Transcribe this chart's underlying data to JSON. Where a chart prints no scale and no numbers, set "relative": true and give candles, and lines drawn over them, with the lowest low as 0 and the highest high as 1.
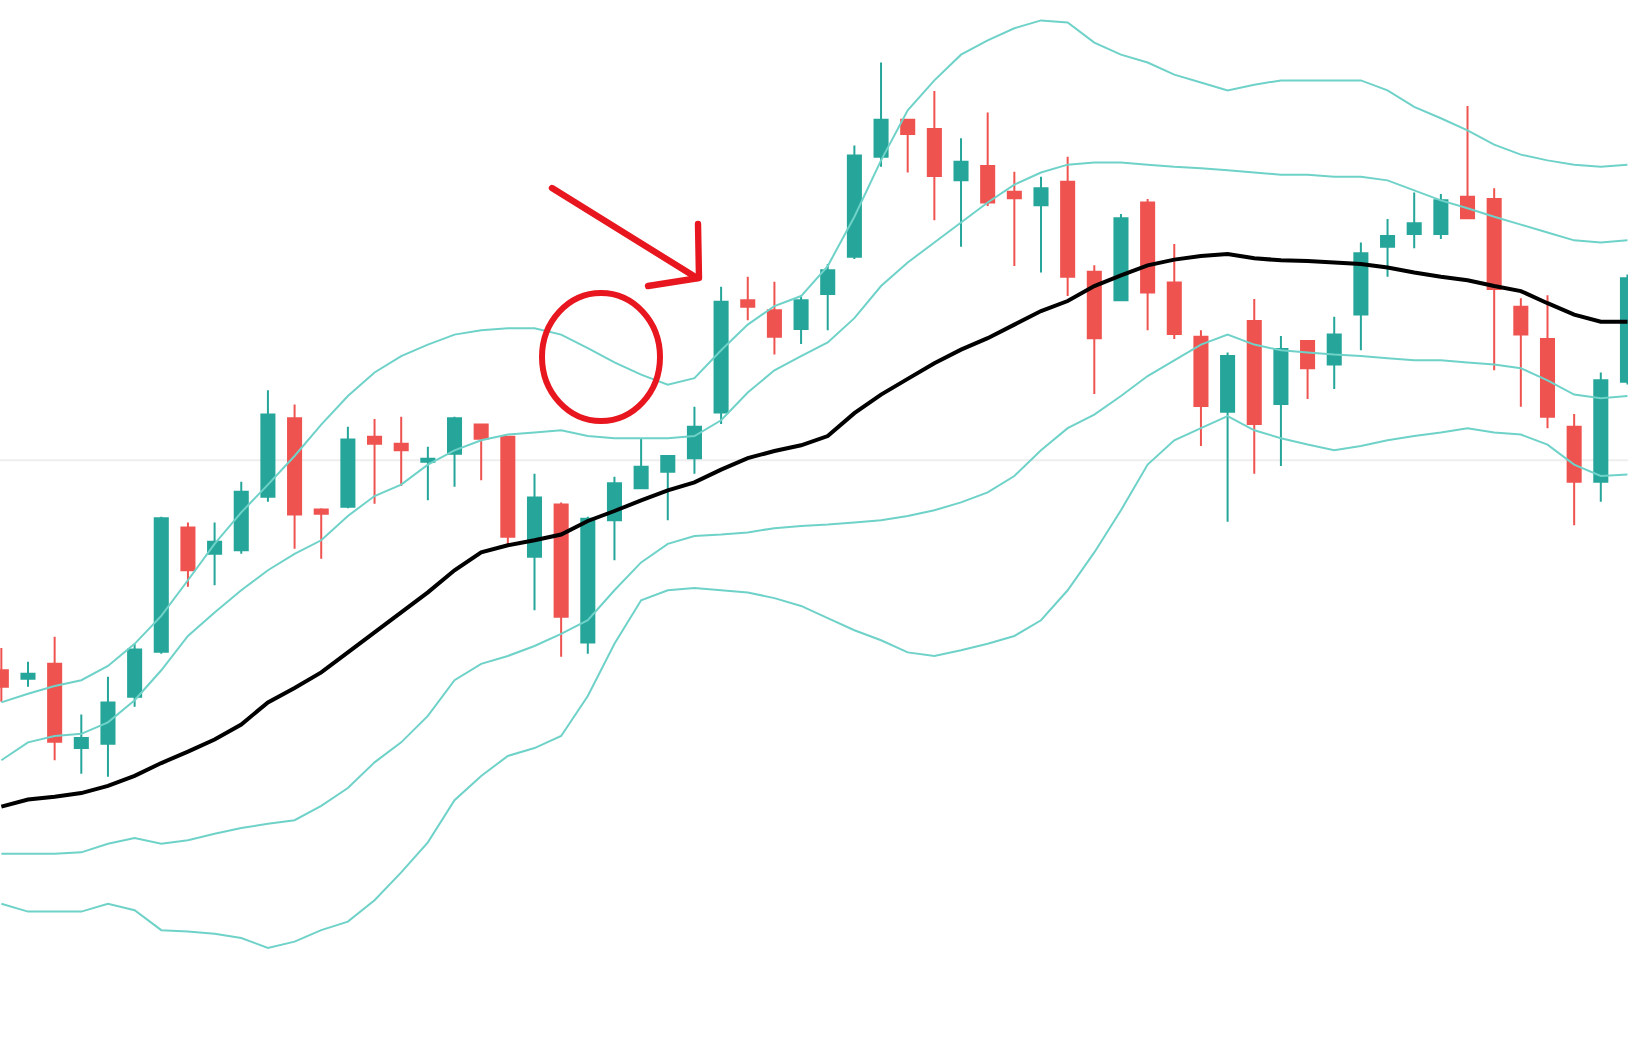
{
  "chart_data": {
    "type": "candlestick",
    "relative": true,
    "categories": [
      null,
      null,
      null,
      null,
      null,
      null,
      null,
      null,
      null,
      null,
      null,
      null,
      null,
      null,
      null,
      null,
      null,
      null,
      null,
      null,
      null,
      null,
      null,
      null,
      null,
      null,
      null,
      null,
      null,
      null,
      null,
      null,
      null,
      null,
      null,
      null,
      null,
      null,
      null,
      null,
      null,
      null,
      null,
      null,
      null,
      null,
      null,
      null,
      null,
      null,
      null,
      null,
      null,
      null,
      null,
      null,
      null,
      null,
      null,
      null,
      null,
      null
    ],
    "ohlc": [
      [
        0.149,
        0.18,
        0.105,
        0.126
      ],
      [
        0.137,
        0.161,
        0.126,
        0.144
      ],
      [
        0.158,
        0.196,
        0.023,
        0.049
      ],
      [
        0.04,
        0.087,
        0.004,
        0.054
      ],
      [
        0.046,
        0.14,
        0,
        0.104
      ],
      [
        0.112,
        0.186,
        0.098,
        0.178
      ],
      [
        0.175,
        0.364,
        0.172,
        0.362
      ],
      [
        0.349,
        0.356,
        0.266,
        0.289
      ],
      [
        0.312,
        0.356,
        0.268,
        0.329
      ],
      [
        0.317,
        0.413,
        0.312,
        0.399
      ],
      [
        0.392,
        0.541,
        0.385,
        0.507
      ],
      [
        0.502,
        0.521,
        0.319,
        0.367
      ],
      [
        0.374,
        0.376,
        0.305,
        0.368
      ],
      [
        0.378,
        0.49,
        0.376,
        0.472
      ],
      [
        0.476,
        0.501,
        0.382,
        0.466
      ],
      [
        0.466,
        0.504,
        0.407,
        0.457
      ],
      [
        0.441,
        0.462,
        0.387,
        0.445
      ],
      [
        0.452,
        0.504,
        0.406,
        0.502
      ],
      [
        0.493,
        0.493,
        0.415,
        0.473
      ],
      [
        0.476,
        0.477,
        0.324,
        0.336
      ],
      [
        0.308,
        0.424,
        0.233,
        0.391
      ],
      [
        0.381,
        0.384,
        0.168,
        0.224
      ],
      [
        0.188,
        0.364,
        0.172,
        0.361
      ],
      [
        0.359,
        0.42,
        0.303,
        0.411
      ],
      [
        0.404,
        0.473,
        0.404,
        0.434
      ],
      [
        0.427,
        0.449,
        0.359,
        0.449
      ],
      [
        0.446,
        0.518,
        0.424,
        0.49
      ],
      [
        0.51,
        0.686,
        0.494,
        0.665
      ],
      [
        0.667,
        0.7,
        0.639,
        0.658
      ],
      [
        0.653,
        0.693,
        0.591,
        0.616
      ],
      [
        0.627,
        0.674,
        0.606,
        0.667
      ],
      [
        0.676,
        0.718,
        0.625,
        0.709
      ],
      [
        0.728,
        0.884,
        0.725,
        0.87
      ],
      [
        0.868,
        1,
        0.854,
        0.92
      ],
      [
        0.92,
        0.92,
        0.846,
        0.9
      ],
      [
        0.907,
        0.96,
        0.779,
        0.841
      ],
      [
        0.835,
        0.894,
        0.742,
        0.861
      ],
      [
        0.855,
        0.93,
        0.799,
        0.804
      ],
      [
        0.819,
        0.847,
        0.715,
        0.81
      ],
      [
        0.8,
        0.84,
        0.706,
        0.824
      ],
      [
        0.833,
        0.868,
        0.673,
        0.7
      ],
      [
        0.707,
        0.716,
        0.536,
        0.614
      ],
      [
        0.667,
        0.788,
        0.667,
        0.782
      ],
      [
        0.804,
        0.809,
        0.625,
        0.678
      ],
      [
        0.692,
        0.746,
        0.613,
        0.62
      ],
      [
        0.616,
        0.625,
        0.463,
        0.519
      ],
      [
        0.511,
        0.594,
        0.357,
        0.589
      ],
      [
        0.638,
        0.669,
        0.424,
        0.494
      ],
      [
        0.522,
        0.617,
        0.435,
        0.599
      ],
      [
        0.61,
        0.61,
        0.529,
        0.572
      ],
      [
        0.577,
        0.644,
        0.543,
        0.619
      ],
      [
        0.647,
        0.748,
        0.597,
        0.733
      ],
      [
        0.742,
        0.781,
        0.7,
        0.757
      ],
      [
        0.76,
        0.818,
        0.74,
        0.775
      ],
      [
        0.76,
        0.816,
        0.753,
        0.807
      ],
      [
        0.812,
        0.939,
        0.782,
        0.782
      ],
      [
        0.809,
        0.824,
        0.569,
        0.683
      ],
      [
        0.658,
        0.67,
        0.518,
        0.619
      ],
      [
        0.613,
        0.674,
        0.488,
        0.504
      ],
      [
        0.49,
        0.508,
        0.352,
        0.413
      ],
      [
        0.413,
        0.566,
        0.385,
        0.555
      ],
      [
        0.553,
        0.703,
        0.549,
        0.698
      ]
    ],
    "colors": [
      "#ef5350",
      "#26a69a",
      "#ef5350",
      "#26a69a",
      "#26a69a",
      "#26a69a",
      "#26a69a",
      "#ef5350",
      "#26a69a",
      "#26a69a",
      "#26a69a",
      "#ef5350",
      "#ef5350",
      "#26a69a",
      "#ef5350",
      "#ef5350",
      "#26a69a",
      "#26a69a",
      "#ef5350",
      "#ef5350",
      "#26a69a",
      "#ef5350",
      "#26a69a",
      "#26a69a",
      "#26a69a",
      "#26a69a",
      "#26a69a",
      "#26a69a",
      "#ef5350",
      "#ef5350",
      "#26a69a",
      "#26a69a",
      "#26a69a",
      "#26a69a",
      "#ef5350",
      "#ef5350",
      "#26a69a",
      "#ef5350",
      "#ef5350",
      "#26a69a",
      "#ef5350",
      "#ef5350",
      "#26a69a",
      "#ef5350",
      "#ef5350",
      "#ef5350",
      "#26a69a",
      "#ef5350",
      "#26a69a",
      "#ef5350",
      "#26a69a",
      "#26a69a",
      "#26a69a",
      "#26a69a",
      "#26a69a",
      "#ef5350",
      "#ef5350",
      "#ef5350",
      "#ef5350",
      "#ef5350",
      "#26a69a",
      "#26a69a"
    ],
    "series": [
      {
        "type": "line",
        "color": "#6fd2c9",
        "values": [
          0.104,
          0.116,
          0.127,
          0.135,
          0.155,
          0.186,
          0.225,
          0.275,
          0.326,
          0.37,
          0.409,
          0.449,
          0.493,
          0.533,
          0.566,
          0.589,
          0.605,
          0.619,
          0.625,
          0.628,
          0.628,
          0.619,
          0.6,
          0.58,
          0.563,
          0.549,
          0.558,
          0.597,
          0.633,
          0.659,
          0.673,
          0.715,
          0.784,
          0.863,
          0.933,
          0.975,
          1.011,
          1.031,
          1.048,
          1.059,
          1.056,
          1.028,
          1.011,
          1.0,
          0.983,
          0.972,
          0.961,
          0.969,
          0.975,
          0.975,
          0.975,
          0.975,
          0.961,
          0.938,
          0.922,
          0.905,
          0.885,
          0.871,
          0.863,
          0.857,
          0.854,
          0.857
        ]
      },
      {
        "type": "line",
        "color": "#6fd2c9",
        "values": [
          0.023,
          0.048,
          0.057,
          0.06,
          0.076,
          0.107,
          0.149,
          0.197,
          0.23,
          0.261,
          0.289,
          0.312,
          0.331,
          0.365,
          0.393,
          0.409,
          0.437,
          0.457,
          0.471,
          0.479,
          0.482,
          0.485,
          0.477,
          0.474,
          0.474,
          0.474,
          0.477,
          0.499,
          0.538,
          0.569,
          0.589,
          0.608,
          0.642,
          0.687,
          0.72,
          0.748,
          0.776,
          0.804,
          0.829,
          0.846,
          0.857,
          0.86,
          0.86,
          0.857,
          0.854,
          0.852,
          0.849,
          0.846,
          0.843,
          0.843,
          0.84,
          0.84,
          0.835,
          0.821,
          0.807,
          0.796,
          0.784,
          0.773,
          0.762,
          0.751,
          0.748,
          0.751
        ]
      },
      {
        "type": "line",
        "color": "#000000",
        "values": [
          -0.042,
          -0.032,
          -0.028,
          -0.023,
          -0.013,
          0.001,
          0.019,
          0.035,
          0.052,
          0.073,
          0.104,
          0.124,
          0.146,
          0.174,
          0.202,
          0.23,
          0.258,
          0.289,
          0.314,
          0.324,
          0.331,
          0.339,
          0.358,
          0.372,
          0.387,
          0.401,
          0.412,
          0.43,
          0.446,
          0.456,
          0.464,
          0.477,
          0.509,
          0.535,
          0.557,
          0.579,
          0.598,
          0.614,
          0.633,
          0.652,
          0.666,
          0.687,
          0.702,
          0.716,
          0.724,
          0.729,
          0.732,
          0.726,
          0.723,
          0.722,
          0.72,
          0.718,
          0.713,
          0.706,
          0.7,
          0.695,
          0.687,
          0.68,
          0.663,
          0.647,
          0.637,
          0.637
        ]
      },
      {
        "type": "line",
        "color": "#6fd2c9",
        "values": [
          -0.108,
          -0.108,
          -0.108,
          -0.106,
          -0.094,
          -0.086,
          -0.094,
          -0.089,
          -0.08,
          -0.072,
          -0.066,
          -0.061,
          -0.041,
          -0.016,
          0.02,
          0.048,
          0.085,
          0.135,
          0.158,
          0.169,
          0.183,
          0.2,
          0.219,
          0.261,
          0.3,
          0.326,
          0.337,
          0.339,
          0.342,
          0.348,
          0.351,
          0.353,
          0.356,
          0.359,
          0.365,
          0.373,
          0.384,
          0.398,
          0.421,
          0.457,
          0.488,
          0.507,
          0.533,
          0.561,
          0.583,
          0.605,
          0.619,
          0.605,
          0.597,
          0.594,
          0.591,
          0.589,
          0.586,
          0.583,
          0.583,
          0.58,
          0.577,
          0.572,
          0.555,
          0.535,
          0.53,
          0.533
        ]
      },
      {
        "type": "line",
        "color": "#6fd2c9",
        "values": [
          -0.178,
          -0.189,
          -0.189,
          -0.189,
          -0.178,
          -0.187,
          -0.215,
          -0.217,
          -0.22,
          -0.226,
          -0.24,
          -0.231,
          -0.215,
          -0.203,
          -0.173,
          -0.134,
          -0.092,
          -0.033,
          0.001,
          0.029,
          0.04,
          0.057,
          0.113,
          0.186,
          0.247,
          0.261,
          0.264,
          0.261,
          0.258,
          0.25,
          0.239,
          0.222,
          0.205,
          0.191,
          0.174,
          0.169,
          0.177,
          0.186,
          0.197,
          0.219,
          0.261,
          0.314,
          0.373,
          0.437,
          0.471,
          0.488,
          0.505,
          0.485,
          0.474,
          0.465,
          0.457,
          0.463,
          0.471,
          0.477,
          0.482,
          0.488,
          0.482,
          0.479,
          0.465,
          0.437,
          0.421,
          0.423
        ]
      }
    ],
    "ref_lines": [
      {
        "axis": "y",
        "value": 0.443,
        "color": "#eeeeee"
      }
    ]
  }
}
